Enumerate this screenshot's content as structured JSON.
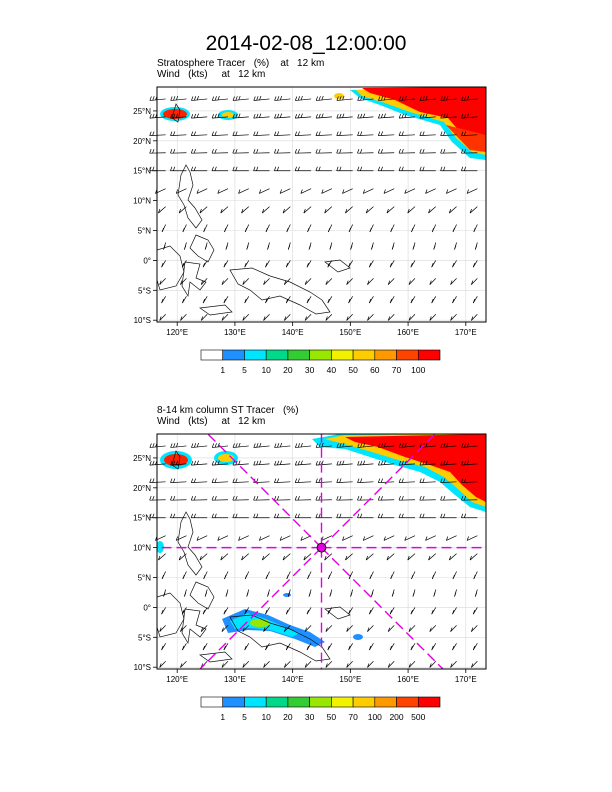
{
  "title": "2014-02-08_12:00:00",
  "panels": [
    {
      "id": "top",
      "subtitle_line1": "Stratosphere Tracer   (%)    at   12 km",
      "subtitle_line2": "Wind   (kts)     at   12 km",
      "colorbar_labels": [
        "1",
        "5",
        "10",
        "20",
        "30",
        "40",
        "50",
        "60",
        "70",
        "100"
      ],
      "colorbar_colors": [
        "#ffffff",
        "#1e90ff",
        "#00e5ff",
        "#00d88a",
        "#33cc33",
        "#99e600",
        "#f2f200",
        "#ffcc00",
        "#ff9900",
        "#ff4400",
        "#ff0000"
      ]
    },
    {
      "id": "bottom",
      "subtitle_line1": "8-14 km column ST Tracer   (%)",
      "subtitle_line2": "Wind   (kts)     at   12 km",
      "colorbar_labels": [
        "1",
        "5",
        "10",
        "20",
        "30",
        "50",
        "70",
        "100",
        "200",
        "500"
      ],
      "colorbar_colors": [
        "#ffffff",
        "#1e90ff",
        "#00e5ff",
        "#00d88a",
        "#33cc33",
        "#99e600",
        "#f2f200",
        "#ffcc00",
        "#ff9900",
        "#ff4400",
        "#ff0000"
      ]
    }
  ],
  "map": {
    "lon_labels": [
      "120°E",
      "130°E",
      "140°E",
      "150°E",
      "160°E",
      "170°E"
    ],
    "lat_labels": [
      "25°N",
      "20°N",
      "15°N",
      "10°N",
      "5°N",
      "0°",
      "5°S",
      "10°S"
    ],
    "lon_values": [
      120,
      130,
      140,
      150,
      160,
      170
    ],
    "lat_values": [
      25,
      20,
      15,
      10,
      5,
      0,
      -5,
      -10
    ],
    "lon_range": [
      116.5,
      173.5
    ],
    "lat_range": [
      -10.3,
      29
    ],
    "ring_center": {
      "lon": 145,
      "lat": 10
    }
  },
  "colors": {
    "ring": "#e000e0",
    "tracer_high": "#ff0000",
    "tracer_mid": "#ffcc00",
    "tracer_low": "#00e5ff"
  }
}
